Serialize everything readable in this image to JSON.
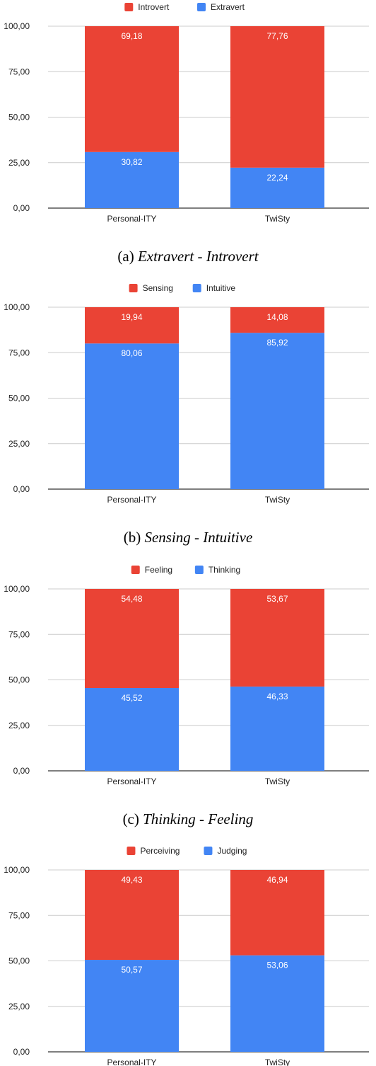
{
  "colors": {
    "red": "#ea4335",
    "blue": "#4285f4",
    "grid": "#cccccc",
    "axis": "#333333"
  },
  "chart_data": [
    {
      "type": "bar",
      "stacked": true,
      "categories": [
        "Personal-ITY",
        "TwiSty"
      ],
      "series": [
        {
          "name": "Introvert",
          "color": "#ea4335",
          "values": [
            69.18,
            77.76
          ],
          "labels": [
            "69,18",
            "77,76"
          ]
        },
        {
          "name": "Extravert",
          "color": "#4285f4",
          "values": [
            30.82,
            22.24
          ],
          "labels": [
            "30,82",
            "22,24"
          ]
        }
      ],
      "stack_order": [
        1,
        0
      ],
      "yticks": [
        "0,00",
        "25,00",
        "50,00",
        "75,00",
        "100,00"
      ],
      "ylim": [
        0,
        100
      ],
      "legend": "top",
      "grid": true,
      "caption_prefix": "(a)",
      "caption": "Extravert - Introvert"
    },
    {
      "type": "bar",
      "stacked": true,
      "categories": [
        "Personal-ITY",
        "TwiSty"
      ],
      "series": [
        {
          "name": "Sensing",
          "color": "#ea4335",
          "values": [
            19.94,
            14.08
          ],
          "labels": [
            "19,94",
            "14,08"
          ]
        },
        {
          "name": "Intuitive",
          "color": "#4285f4",
          "values": [
            80.06,
            85.92
          ],
          "labels": [
            "80,06",
            "85,92"
          ]
        }
      ],
      "stack_order": [
        1,
        0
      ],
      "yticks": [
        "0,00",
        "25,00",
        "50,00",
        "75,00",
        "100,00"
      ],
      "ylim": [
        0,
        100
      ],
      "legend": "top",
      "grid": true,
      "caption_prefix": "(b)",
      "caption": "Sensing - Intuitive"
    },
    {
      "type": "bar",
      "stacked": true,
      "categories": [
        "Personal-ITY",
        "TwiSty"
      ],
      "series": [
        {
          "name": "Feeling",
          "color": "#ea4335",
          "values": [
            54.48,
            53.67
          ],
          "labels": [
            "54,48",
            "53,67"
          ]
        },
        {
          "name": "Thinking",
          "color": "#4285f4",
          "values": [
            45.52,
            46.33
          ],
          "labels": [
            "45,52",
            "46,33"
          ]
        }
      ],
      "stack_order": [
        1,
        0
      ],
      "yticks": [
        "0,00",
        "25,00",
        "50,00",
        "75,00",
        "100,00"
      ],
      "ylim": [
        0,
        100
      ],
      "legend": "top",
      "grid": true,
      "caption_prefix": "(c)",
      "caption": "Thinking - Feeling"
    },
    {
      "type": "bar",
      "stacked": true,
      "categories": [
        "Personal-ITY",
        "TwiSty"
      ],
      "series": [
        {
          "name": "Perceiving",
          "color": "#ea4335",
          "values": [
            49.43,
            46.94
          ],
          "labels": [
            "49,43",
            "46,94"
          ]
        },
        {
          "name": "Judging",
          "color": "#4285f4",
          "values": [
            50.57,
            53.06
          ],
          "labels": [
            "50,57",
            "53,06"
          ]
        }
      ],
      "stack_order": [
        1,
        0
      ],
      "yticks": [
        "0,00",
        "25,00",
        "50,00",
        "75,00",
        "100,00"
      ],
      "ylim": [
        0,
        100
      ],
      "legend": "top",
      "grid": true,
      "caption_prefix": "",
      "caption": ""
    }
  ]
}
